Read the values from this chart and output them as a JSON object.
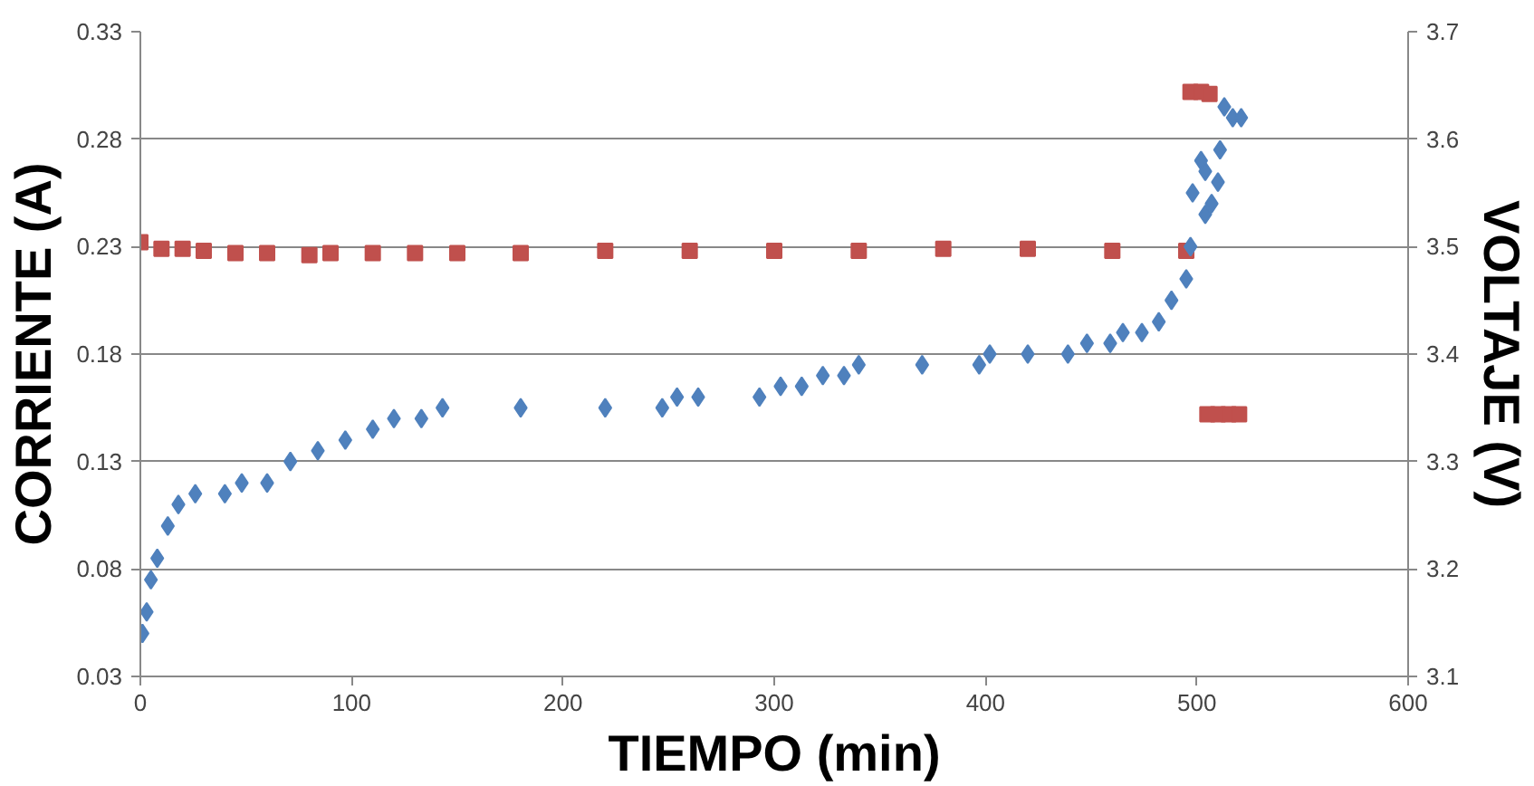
{
  "chart_data": {
    "type": "scatter",
    "xlabel": "TIEMPO (min)",
    "ylabel": "CORRIENTE (A)",
    "y2label": "VOLTAJE (V)",
    "xlim": [
      0,
      600
    ],
    "xticks": [
      0,
      100,
      200,
      300,
      400,
      500,
      600
    ],
    "ylim": [
      0.03,
      0.33
    ],
    "yticks": [
      0.03,
      0.08,
      0.13,
      0.18,
      0.23,
      0.28,
      0.33
    ],
    "y2lim": [
      3.1,
      3.7
    ],
    "y2ticks": [
      3.1,
      3.2,
      3.3,
      3.4,
      3.5,
      3.6,
      3.7
    ],
    "grid": "y",
    "series": [
      {
        "color": "#c0504d",
        "marker": "square",
        "x": [
          0,
          10,
          20,
          30,
          45,
          60,
          80,
          90,
          110,
          130,
          150,
          180,
          220,
          260,
          300,
          340,
          380,
          420,
          460,
          495,
          497,
          502,
          506,
          505,
          510,
          515,
          520
        ],
        "values": [
          0.232,
          0.229,
          0.229,
          0.228,
          0.227,
          0.227,
          0.226,
          0.227,
          0.227,
          0.227,
          0.227,
          0.227,
          0.228,
          0.228,
          0.228,
          0.228,
          0.229,
          0.229,
          0.228,
          0.228,
          0.302,
          0.302,
          0.301,
          0.152,
          0.152,
          0.152,
          0.152
        ]
      },
      {
        "color": "#4f81bd",
        "marker": "diamond",
        "axis": "y2",
        "x": [
          1,
          3,
          5,
          8,
          13,
          18,
          26,
          40,
          48,
          60,
          71,
          84,
          97,
          110,
          120,
          133,
          143,
          180,
          220,
          247,
          254,
          264,
          293,
          303,
          313,
          323,
          333,
          340,
          370,
          397,
          402,
          420,
          439,
          448,
          459,
          465,
          474,
          482,
          488,
          495,
          497,
          498,
          502,
          504,
          504,
          507,
          510,
          511,
          513,
          517,
          521
        ],
        "values": [
          3.14,
          3.16,
          3.19,
          3.21,
          3.24,
          3.26,
          3.27,
          3.27,
          3.28,
          3.28,
          3.3,
          3.31,
          3.32,
          3.33,
          3.34,
          3.34,
          3.35,
          3.35,
          3.35,
          3.35,
          3.36,
          3.36,
          3.36,
          3.37,
          3.37,
          3.38,
          3.38,
          3.39,
          3.39,
          3.39,
          3.4,
          3.4,
          3.4,
          3.41,
          3.41,
          3.42,
          3.42,
          3.43,
          3.45,
          3.47,
          3.5,
          3.55,
          3.58,
          3.57,
          3.53,
          3.54,
          3.56,
          3.59,
          3.63,
          3.62,
          3.62
        ]
      }
    ]
  }
}
